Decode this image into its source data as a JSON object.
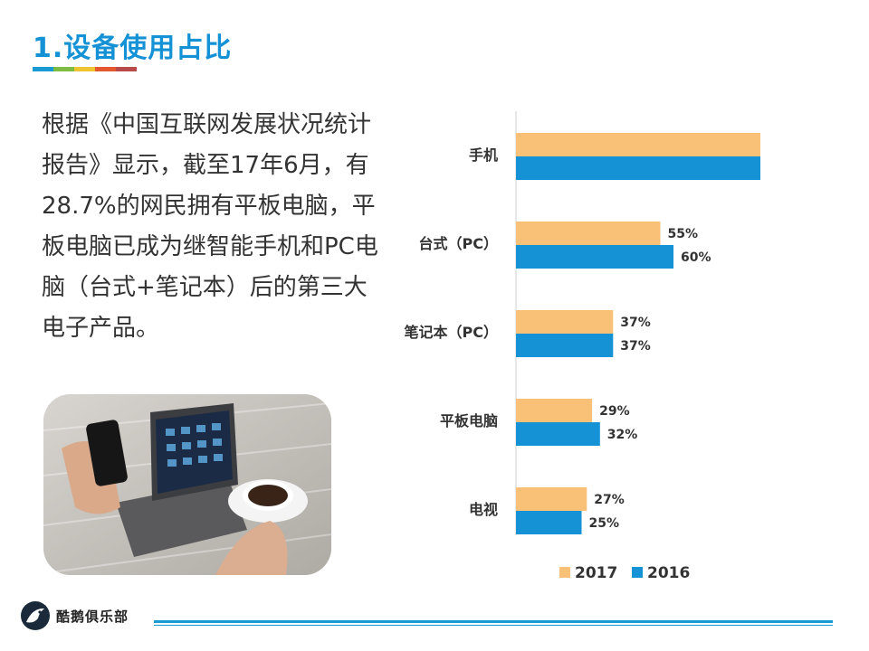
{
  "header": {
    "title": "1.设备使用占比",
    "strip_colors": [
      "#1b9bd4",
      "#7dbb42",
      "#f0c330",
      "#e5572f",
      "#b94a4a"
    ]
  },
  "content": {
    "paragraph": "根据《中国互联网发展状况统计报告》显示，截至17年6月，有28.7%的网民拥有平板电脑，平板电脑已成为继智能手机和PC电脑（台式+笔记本）后的第三大电子产品。",
    "photo_icon": "tablet-phone-coffee-photo"
  },
  "chart_data": {
    "type": "bar",
    "orientation": "horizontal",
    "categories": [
      "手机",
      "台式（PC）",
      "笔记本（PC）",
      "平板电脑",
      "电视"
    ],
    "series": [
      {
        "name": "2017",
        "color": "#f9c078",
        "values": [
          96,
          55,
          37,
          29,
          27
        ],
        "labels": [
          "96%",
          "55%",
          "37%",
          "29%",
          "27%"
        ]
      },
      {
        "name": "2016",
        "color": "#1591d6",
        "values": [
          95,
          60,
          37,
          32,
          25
        ],
        "labels": [
          "95%",
          "60%",
          "37%",
          "32%",
          "25%"
        ]
      }
    ],
    "xlim": [
      0,
      100
    ],
    "unit": "%",
    "grid": false,
    "legend": "bottom"
  },
  "footer": {
    "logo_text": "酷鹅俱乐部",
    "logo_icon": "penguin-icon",
    "accent": "#1b9bd4"
  }
}
